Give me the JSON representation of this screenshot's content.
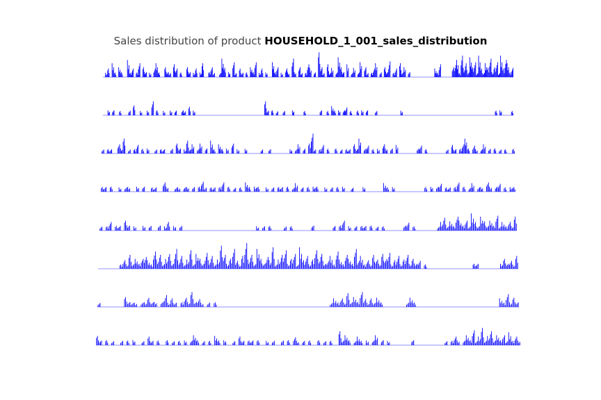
{
  "title_prefix": "Sales distribution of product",
  "title_product": "HOUSEHOLD_1_001_sales_distribution",
  "colors": {
    "series": "#0000ff",
    "baseline": "#6b6bff",
    "title": "#444444"
  },
  "chart_data": {
    "type": "bar",
    "title": "Sales distribution of product HOUSEHOLD_1_001_sales_distribution",
    "xlabel": "",
    "ylabel": "",
    "grid": false,
    "axes_visible": false,
    "panels": 8,
    "x_domain": [
      0,
      1913
    ],
    "ylim": [
      0,
      6
    ],
    "note_series": "Eight stacked panels (stores) of daily unit sales drawn as thin vertical spikes.",
    "series": [
      {
        "name": "",
        "values": [
          0,
          1,
          2,
          0,
          3,
          1,
          0,
          2,
          1,
          0,
          0,
          4,
          1,
          2,
          0,
          1,
          3,
          0,
          2,
          1,
          0,
          1,
          0,
          2,
          3,
          1,
          0,
          0,
          2,
          1,
          1,
          0,
          3,
          2,
          0,
          1,
          0,
          0,
          2,
          1,
          0,
          1,
          2,
          0,
          1,
          3,
          0,
          0,
          1,
          2,
          1,
          0,
          0,
          1,
          4,
          2,
          0,
          1,
          0,
          3,
          1,
          0,
          2,
          1,
          0,
          1,
          0,
          2,
          1,
          3,
          0,
          1,
          2,
          0,
          1,
          0,
          0,
          3,
          1,
          2,
          0,
          1,
          0,
          2,
          1,
          0,
          4,
          1,
          0,
          2,
          1,
          0,
          1,
          3,
          2,
          0,
          1,
          0,
          5,
          2,
          1,
          0,
          3,
          1,
          2,
          0,
          1,
          4,
          2,
          1,
          0,
          3,
          0,
          1,
          2,
          0,
          1,
          3,
          0,
          2,
          1,
          0,
          1,
          2,
          3,
          0,
          1,
          0,
          2,
          1,
          4,
          0,
          1,
          2,
          0,
          3,
          1,
          2,
          0,
          1,
          0,
          0,
          0,
          0,
          0,
          0,
          0,
          0,
          0,
          0,
          0,
          2,
          1,
          3,
          0,
          0,
          0,
          0,
          0,
          2,
          3,
          4,
          1,
          5,
          2,
          3,
          1,
          4,
          2,
          3,
          1,
          5,
          2,
          1,
          3,
          2,
          4,
          1,
          2,
          3,
          1,
          5,
          2,
          4,
          3,
          1,
          2
        ]
      },
      {
        "name": "",
        "values": [
          0,
          0,
          1,
          0,
          1,
          0,
          0,
          1,
          0,
          0,
          0,
          1,
          0,
          2,
          0,
          0,
          1,
          0,
          0,
          1,
          0,
          3,
          0,
          1,
          0,
          0,
          1,
          0,
          0,
          1,
          0,
          1,
          0,
          0,
          1,
          1,
          0,
          2,
          0,
          1,
          0,
          0,
          0,
          0,
          0,
          0,
          0,
          0,
          0,
          0,
          0,
          0,
          0,
          0,
          0,
          0,
          0,
          0,
          0,
          0,
          0,
          0,
          0,
          0,
          0,
          0,
          0,
          0,
          0,
          0,
          3,
          1,
          0,
          1,
          0,
          1,
          0,
          0,
          1,
          0,
          0,
          0,
          1,
          0,
          0,
          0,
          0,
          1,
          0,
          0,
          0,
          0,
          0,
          0,
          1,
          0,
          0,
          1,
          0,
          2,
          1,
          0,
          1,
          0,
          1,
          2,
          0,
          1,
          0,
          0,
          1,
          0,
          1,
          0,
          1,
          0,
          0,
          0,
          1,
          0,
          0,
          0,
          0,
          0,
          0,
          0,
          0,
          0,
          0,
          1,
          0,
          0,
          0,
          0,
          0,
          0,
          0,
          0,
          0,
          0,
          0,
          0,
          0,
          0,
          0,
          0,
          0,
          0,
          0,
          0,
          0,
          0,
          0,
          0,
          0,
          0,
          0,
          0,
          0,
          0,
          0,
          0,
          0,
          0,
          0,
          0,
          0,
          0,
          0,
          0,
          1,
          0,
          1,
          0,
          0,
          0,
          0,
          1
        ]
      },
      {
        "name": "",
        "values": [
          1,
          0,
          1,
          1,
          0,
          0,
          2,
          1,
          3,
          0,
          1,
          0,
          1,
          2,
          0,
          1,
          0,
          1,
          0,
          0,
          1,
          0,
          1,
          1,
          0,
          0,
          1,
          0,
          2,
          1,
          0,
          1,
          3,
          1,
          2,
          0,
          1,
          2,
          0,
          1,
          0,
          3,
          1,
          0,
          2,
          1,
          0,
          1,
          0,
          2,
          0,
          1,
          0,
          0,
          1,
          0,
          0,
          0,
          0,
          0,
          1,
          0,
          0,
          1,
          0,
          0,
          0,
          0,
          0,
          0,
          0,
          1,
          0,
          1,
          2,
          0,
          1,
          0,
          2,
          4,
          1,
          0,
          1,
          2,
          0,
          1,
          0,
          0,
          1,
          0,
          1,
          0,
          1,
          1,
          0,
          2,
          1,
          3,
          0,
          1,
          2,
          0,
          1,
          0,
          1,
          0,
          2,
          1,
          0,
          1,
          0,
          2,
          0,
          0,
          0,
          0,
          0,
          0,
          0,
          1,
          2,
          0,
          1,
          0,
          0,
          0,
          0,
          0,
          0,
          0,
          1,
          0,
          2,
          1,
          0,
          1,
          2,
          3,
          1,
          0,
          2,
          1,
          0,
          1,
          2,
          0,
          1,
          0,
          1,
          0,
          1,
          0,
          1,
          0,
          0,
          1
        ]
      },
      {
        "name": "",
        "values": [
          1,
          1,
          0,
          1,
          0,
          0,
          1,
          0,
          1,
          1,
          0,
          0,
          1,
          0,
          1,
          0,
          0,
          1,
          1,
          0,
          0,
          2,
          1,
          0,
          0,
          1,
          1,
          0,
          1,
          1,
          0,
          1,
          0,
          1,
          2,
          1,
          0,
          1,
          1,
          0,
          1,
          2,
          0,
          1,
          0,
          1,
          0,
          1,
          0,
          2,
          1,
          0,
          1,
          1,
          0,
          0,
          1,
          0,
          1,
          0,
          1,
          1,
          0,
          1,
          0,
          1,
          2,
          0,
          1,
          0,
          1,
          0,
          1,
          1,
          0,
          0,
          1,
          0,
          1,
          0,
          1,
          0,
          1,
          0,
          0,
          1,
          0,
          0,
          0,
          1,
          0,
          0,
          0,
          0,
          0,
          0,
          2,
          1,
          0,
          1,
          0,
          0,
          0,
          0,
          0,
          0,
          0,
          0,
          0,
          0,
          1,
          0,
          1,
          0,
          1,
          2,
          0,
          1,
          1,
          0,
          1,
          2,
          0,
          1,
          0,
          1,
          2,
          0,
          1,
          1,
          0,
          2,
          1,
          0,
          1,
          2,
          0,
          1,
          0,
          1,
          1
        ]
      },
      {
        "name": "",
        "values": [
          1,
          0,
          1,
          2,
          0,
          1,
          1,
          0,
          2,
          1,
          0,
          1,
          0,
          0,
          1,
          0,
          1,
          0,
          0,
          1,
          0,
          1,
          2,
          0,
          1,
          0,
          1,
          0,
          0,
          0,
          0,
          0,
          0,
          0,
          0,
          0,
          0,
          0,
          0,
          0,
          0,
          0,
          0,
          0,
          0,
          0,
          0,
          0,
          0,
          0,
          0,
          1,
          0,
          1,
          0,
          1,
          0,
          0,
          0,
          0,
          1,
          0,
          1,
          0,
          0,
          0,
          0,
          0,
          0,
          1,
          0,
          0,
          0,
          0,
          0,
          0,
          1,
          0,
          1,
          2,
          0,
          1,
          0,
          1,
          0,
          1,
          1,
          0,
          1,
          0,
          1,
          0,
          1,
          0,
          0,
          0,
          0,
          0,
          0,
          1,
          2,
          0,
          1,
          0,
          0,
          0,
          0,
          0,
          0,
          0,
          1,
          2,
          3,
          1,
          2,
          1,
          3,
          2,
          1,
          2,
          1,
          4,
          2,
          1,
          3,
          2,
          1,
          2,
          1,
          3,
          1,
          2,
          1,
          2,
          1,
          3
        ]
      },
      {
        "name": "",
        "values": [
          0,
          0,
          0,
          0,
          0,
          0,
          0,
          1,
          2,
          1,
          3,
          1,
          2,
          1,
          2,
          3,
          2,
          1,
          4,
          2,
          3,
          1,
          2,
          3,
          1,
          5,
          2,
          3,
          1,
          2,
          4,
          1,
          3,
          2,
          1,
          4,
          2,
          3,
          1,
          2,
          5,
          3,
          1,
          2,
          4,
          2,
          1,
          3,
          6,
          2,
          3,
          1,
          4,
          2,
          1,
          3,
          2,
          5,
          1,
          2,
          3,
          4,
          1,
          2,
          3,
          1,
          5,
          2,
          3,
          1,
          2,
          4,
          2,
          3,
          1,
          2,
          3,
          1,
          4,
          2,
          1,
          3,
          2,
          1,
          4,
          2,
          3,
          1,
          2,
          1,
          3,
          2,
          1,
          3,
          2,
          4,
          1,
          2,
          3,
          1,
          2,
          3,
          1,
          2,
          1,
          2,
          0,
          1,
          0,
          0,
          0,
          0,
          0,
          0,
          0,
          0,
          0,
          0,
          0,
          0,
          0,
          0,
          0,
          1,
          1,
          0,
          0,
          0,
          0,
          0,
          0,
          0,
          1,
          2,
          1,
          2,
          1,
          3
        ]
      },
      {
        "name": "",
        "values": [
          1,
          0,
          0,
          0,
          0,
          0,
          0,
          0,
          2,
          1,
          1,
          1,
          0,
          1,
          1,
          2,
          1,
          1,
          0,
          1,
          3,
          1,
          2,
          1,
          0,
          1,
          2,
          1,
          3,
          1,
          2,
          1,
          0,
          1,
          0,
          1,
          0,
          0,
          0,
          0,
          0,
          0,
          0,
          0,
          0,
          0,
          0,
          0,
          0,
          0,
          0,
          0,
          0,
          0,
          0,
          0,
          0,
          0,
          0,
          0,
          0,
          0,
          0,
          0,
          0,
          0,
          0,
          0,
          0,
          0,
          1,
          2,
          1,
          2,
          1,
          3,
          1,
          2,
          1,
          3,
          2,
          1,
          2,
          1,
          2,
          1,
          0,
          0,
          0,
          0,
          0,
          0,
          0,
          1,
          2,
          1,
          0,
          0,
          0,
          0,
          0,
          0,
          0,
          0,
          0,
          0,
          0,
          0,
          0,
          0,
          0,
          0,
          0,
          0,
          0,
          0,
          0,
          0,
          0,
          0,
          0,
          2,
          1,
          3,
          1,
          2,
          1
        ]
      },
      {
        "name": "",
        "values": [
          2,
          1,
          0,
          1,
          0,
          1,
          0,
          0,
          1,
          0,
          1,
          0,
          1,
          0,
          0,
          1,
          0,
          2,
          1,
          0,
          1,
          0,
          0,
          1,
          0,
          1,
          0,
          1,
          0,
          1,
          0,
          1,
          2,
          1,
          0,
          1,
          0,
          1,
          0,
          2,
          1,
          0,
          1,
          0,
          0,
          1,
          0,
          2,
          1,
          0,
          1,
          1,
          0,
          1,
          0,
          0,
          1,
          0,
          1,
          0,
          0,
          1,
          0,
          1,
          0,
          2,
          1,
          0,
          1,
          0,
          1,
          0,
          0,
          1,
          0,
          1,
          0,
          1,
          0,
          0,
          3,
          1,
          2,
          1,
          0,
          1,
          2,
          1,
          0,
          1,
          0,
          1,
          2,
          0,
          1,
          0,
          1,
          0,
          0,
          0,
          0,
          0,
          0,
          0,
          1,
          0,
          0,
          0,
          0,
          0,
          0,
          0,
          0,
          0,
          0,
          1,
          0,
          1,
          2,
          1,
          0,
          1,
          2,
          1,
          3,
          1,
          2,
          4,
          1,
          2,
          3,
          1,
          2,
          1,
          2,
          1,
          3,
          1,
          2,
          1
        ]
      }
    ]
  }
}
